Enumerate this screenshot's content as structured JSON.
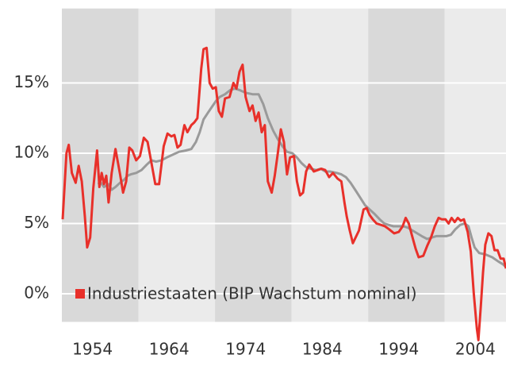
{
  "chart_data": {
    "type": "line",
    "xlim": [
      1950,
      2008
    ],
    "ylim": [
      -2,
      20.3
    ],
    "xticks": [
      1954,
      1964,
      1974,
      1984,
      1994,
      2004
    ],
    "yticks": [
      {
        "value": 0,
        "label": "0%"
      },
      {
        "value": 5,
        "label": "5%"
      },
      {
        "value": 10,
        "label": "10%"
      },
      {
        "value": 15,
        "label": "15%"
      }
    ],
    "grid": true,
    "x_bands": [
      1950,
      1960,
      1970,
      1980,
      1990,
      2000,
      2008
    ],
    "band_colors": [
      "#d9d9d9",
      "#ebebeb"
    ],
    "legend": "lower left",
    "series": [
      {
        "name": "Industriestaaten (BIP Wachstum nominal)",
        "color": "#e8302a",
        "x": [
          1950.1,
          1950.6,
          1950.9,
          1951.3,
          1951.8,
          1952.2,
          1952.6,
          1953.0,
          1953.3,
          1953.7,
          1954.1,
          1954.6,
          1954.9,
          1955.2,
          1955.5,
          1955.8,
          1956.1,
          1956.5,
          1957.0,
          1957.6,
          1958.0,
          1958.4,
          1958.8,
          1959.2,
          1959.7,
          1960.2,
          1960.7,
          1961.2,
          1961.7,
          1962.2,
          1962.7,
          1963.3,
          1963.8,
          1964.3,
          1964.7,
          1965.1,
          1965.5,
          1966.0,
          1966.4,
          1966.9,
          1967.3,
          1967.7,
          1968.2,
          1968.5,
          1968.9,
          1969.3,
          1969.7,
          1970.1,
          1970.5,
          1970.9,
          1971.3,
          1971.9,
          1972.4,
          1972.8,
          1973.2,
          1973.6,
          1974.0,
          1974.5,
          1974.9,
          1975.3,
          1975.7,
          1976.1,
          1976.5,
          1976.9,
          1977.4,
          1977.8,
          1978.2,
          1978.6,
          1979.0,
          1979.4,
          1979.8,
          1980.3,
          1980.7,
          1981.1,
          1981.5,
          1981.9,
          1982.3,
          1982.9,
          1983.4,
          1983.9,
          1984.4,
          1984.9,
          1985.4,
          1986.0,
          1986.5,
          1986.9,
          1987.2,
          1987.6,
          1988.0,
          1988.8,
          1989.4,
          1989.8,
          1990.2,
          1990.6,
          1991.1,
          1991.7,
          1992.2,
          1992.7,
          1993.4,
          1994.0,
          1994.5,
          1994.9,
          1995.3,
          1995.7,
          1996.2,
          1996.6,
          1997.2,
          1997.7,
          1998.2,
          1998.7,
          1999.2,
          1999.6,
          2000.1,
          2000.5,
          2000.9,
          2001.3,
          2001.7,
          2002.1,
          2002.5,
          2003.0,
          2003.4,
          2003.8,
          2004.2,
          2004.4,
          2004.7,
          2005.0,
          2005.3,
          2005.7,
          2006.1,
          2006.5,
          2006.9,
          2007.3,
          2007.7,
          2008.0
        ],
        "values": [
          5.3,
          10,
          10.6,
          8.6,
          7.9,
          9.1,
          8,
          5.5,
          3.3,
          4,
          7.5,
          10.2,
          7.6,
          8.6,
          7.8,
          8.4,
          6.5,
          8.6,
          10.3,
          8.5,
          7.2,
          8,
          10.4,
          10.2,
          9.5,
          9.8,
          11.1,
          10.8,
          9.3,
          7.8,
          7.8,
          10.5,
          11.4,
          11.2,
          11.3,
          10.4,
          10.6,
          12,
          11.5,
          12,
          12.2,
          12.5,
          16,
          17.4,
          17.5,
          15,
          14.6,
          14.7,
          13,
          12.6,
          13.9,
          14,
          15,
          14.6,
          15.8,
          16.3,
          14,
          13,
          13.4,
          12.3,
          12.9,
          11.5,
          12,
          8,
          7.2,
          8.4,
          10,
          11.7,
          10.8,
          8.5,
          9.7,
          9.8,
          8,
          7,
          7.2,
          8.7,
          9.2,
          8.7,
          8.8,
          8.9,
          8.8,
          8.3,
          8.6,
          8.2,
          8,
          6.5,
          5.5,
          4.5,
          3.6,
          4.5,
          6,
          6.1,
          5.6,
          5.3,
          5,
          4.9,
          4.8,
          4.6,
          4.3,
          4.4,
          4.8,
          5.4,
          5,
          4.2,
          3.2,
          2.6,
          2.7,
          3.4,
          4,
          4.8,
          5.4,
          5.3,
          5.3,
          5,
          5.4,
          5.1,
          5.4,
          5.2,
          5.3,
          4.4,
          3,
          0,
          -2.5,
          -3.3,
          -1,
          1.5,
          3.5,
          4.3,
          4.1,
          3.1,
          3.1,
          2.5,
          2.5,
          1.8
        ]
      },
      {
        "color": "#9a9a9a",
        "x": [
          1954.7,
          1955.1,
          1955.5,
          1956.1,
          1956.5,
          1957.0,
          1957.6,
          1958.1,
          1958.6,
          1959.0,
          1959.7,
          1960.4,
          1961.1,
          1961.7,
          1962.3,
          1963.0,
          1963.7,
          1964.5,
          1965.3,
          1966.2,
          1966.9,
          1967.5,
          1968.0,
          1968.5,
          1969.1,
          1969.6,
          1970.1,
          1970.6,
          1971.3,
          1972.0,
          1972.6,
          1973.2,
          1974.0,
          1974.9,
          1975.7,
          1976.3,
          1976.9,
          1977.6,
          1978.2,
          1978.8,
          1979.4,
          1980.1,
          1980.7,
          1981.3,
          1981.9,
          1982.5,
          1983.2,
          1983.8,
          1984.4,
          1985.0,
          1985.9,
          1986.5,
          1987.1,
          1987.7,
          1988.3,
          1989.0,
          1989.6,
          1990.2,
          1990.8,
          1991.5,
          1992.1,
          1992.7,
          1993.3,
          1993.9,
          1994.6,
          1995.2,
          1995.8,
          1996.4,
          1997.0,
          1997.7,
          1998.3,
          1998.9,
          1999.5,
          2000.2,
          2000.8,
          2001.4,
          2002.0,
          2002.6,
          2003.1,
          2003.5,
          2003.9,
          2004.5,
          2005.3,
          2006.2,
          2007.0,
          2007.6,
          2008.0
        ],
        "values": [
          7.8,
          7.9,
          7.6,
          7.8,
          7.4,
          7.6,
          7.9,
          8.1,
          8.4,
          8.5,
          8.6,
          8.8,
          9.2,
          9.5,
          9.4,
          9.5,
          9.7,
          9.9,
          10.1,
          10.2,
          10.3,
          10.8,
          11.5,
          12.4,
          12.9,
          13.3,
          13.7,
          14,
          14.2,
          14.5,
          14.6,
          14.5,
          14.3,
          14.2,
          14.2,
          13.5,
          12.5,
          11.6,
          11,
          10.5,
          10.1,
          10,
          9.7,
          9.3,
          9,
          8.9,
          8.8,
          8.9,
          8.7,
          8.7,
          8.6,
          8.5,
          8.3,
          7.9,
          7.4,
          6.8,
          6.3,
          6,
          5.7,
          5.3,
          5,
          4.9,
          4.8,
          4.8,
          4.8,
          4.7,
          4.5,
          4.3,
          4.1,
          3.9,
          4,
          4.1,
          4.1,
          4.1,
          4.2,
          4.6,
          4.9,
          5,
          4.8,
          4,
          3.3,
          2.9,
          2.8,
          2.6,
          2.3,
          2.1,
          1.9
        ]
      }
    ]
  }
}
